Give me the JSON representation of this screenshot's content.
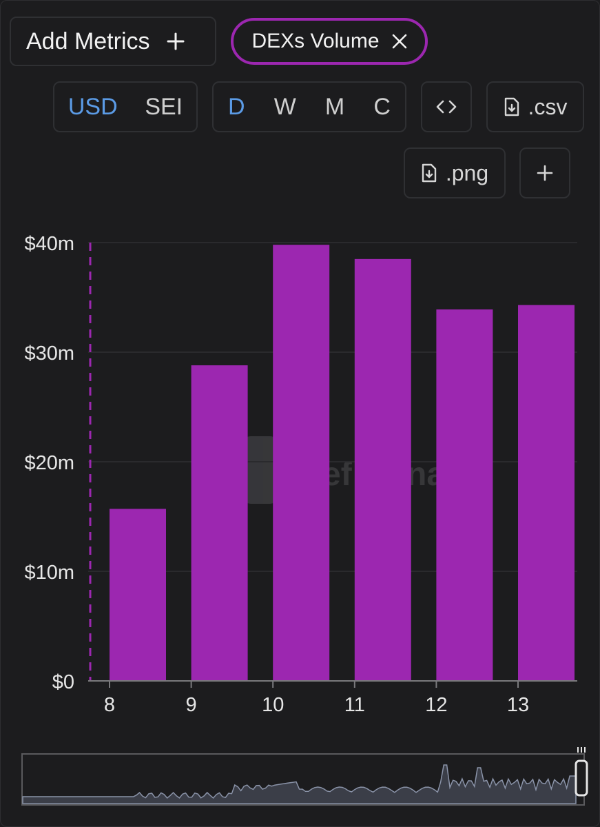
{
  "toolbar": {
    "add_metrics_label": "Add Metrics",
    "metric_chip_label": "DEXs Volume",
    "currency_options": [
      "USD",
      "SEI"
    ],
    "currency_selected": "USD",
    "interval_options": [
      "D",
      "W",
      "M",
      "C"
    ],
    "interval_selected": "D",
    "csv_label": ".csv",
    "png_label": ".png",
    "icons": {
      "add": "plus-icon",
      "remove": "close-icon",
      "embed": "code-icon",
      "download": "file-download-icon",
      "more": "plus-icon"
    }
  },
  "colors": {
    "background": "#1c1c1e",
    "bar": "#9c27b0",
    "active_toggle": "#5b9be6",
    "grid": "#2a2a2d"
  },
  "chart_data": {
    "type": "bar",
    "categories": [
      "8",
      "9",
      "10",
      "11",
      "12",
      "13"
    ],
    "series": [
      {
        "values": [
          15.7,
          28.8,
          39.8,
          38.5,
          33.9,
          34.3
        ]
      }
    ],
    "y_ticks": [
      "$0",
      "$10m",
      "$20m",
      "$30m",
      "$40m"
    ],
    "y_tick_values": [
      0,
      10,
      20,
      30,
      40
    ],
    "ylim": [
      0,
      40
    ],
    "y_unit": "millions USD",
    "grid": true
  }
}
